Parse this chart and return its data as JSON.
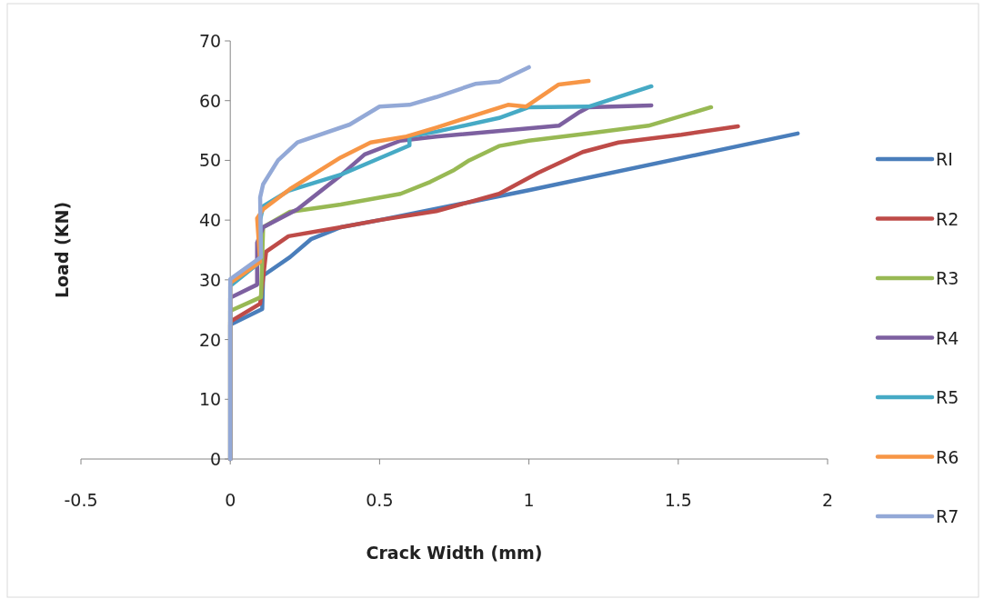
{
  "chart_data": {
    "type": "line",
    "xlabel": "Crack Width (mm)",
    "ylabel": "Load (KN)",
    "xlim": [
      -0.5,
      2
    ],
    "xticks": [
      -0.5,
      0,
      0.5,
      1,
      1.5,
      2
    ],
    "ylim": [
      0,
      70
    ],
    "yticks": [
      0,
      10,
      20,
      30,
      40,
      50,
      60,
      70
    ],
    "grid": false,
    "legend": "right",
    "marker": "none",
    "line_style": "solid",
    "series": [
      {
        "name": "RI",
        "color": "#4a7ebb",
        "x": [
          0,
          0,
          0.107,
          0.11,
          0.2,
          0.27,
          0.37,
          0.5,
          0.8,
          1,
          1.9
        ],
        "values": [
          0,
          22.5,
          25.1,
          30.7,
          33.8,
          36.8,
          38.8,
          40,
          43,
          45,
          54.5
        ]
      },
      {
        "name": "R2",
        "color": "#be4b48",
        "x": [
          0,
          0,
          0.1,
          0.12,
          0.195,
          0.37,
          0.5,
          0.69,
          0.9,
          1.03,
          1.18,
          1.3,
          1.51,
          1.7
        ],
        "values": [
          0,
          23,
          26,
          34.7,
          37.3,
          38.8,
          40,
          41.5,
          44.4,
          47.9,
          51.4,
          53,
          54.3,
          55.7
        ]
      },
      {
        "name": "R3",
        "color": "#98b954",
        "x": [
          0,
          0,
          0.103,
          0.11,
          0.2,
          0.37,
          0.57,
          0.67,
          0.75,
          0.8,
          0.9,
          1,
          1.2,
          1.4,
          1.61
        ],
        "values": [
          0,
          24.8,
          27.1,
          38.8,
          41.4,
          42.6,
          44.4,
          46.4,
          48.4,
          50,
          52.4,
          53.3,
          54.5,
          55.8,
          58.9
        ]
      },
      {
        "name": "R4",
        "color": "#7d60a0",
        "x": [
          0,
          0,
          0.09,
          0.09,
          0.11,
          0.225,
          0.37,
          0.45,
          0.57,
          0.69,
          1.1,
          1.17,
          1.2,
          1.41
        ],
        "values": [
          0,
          27,
          29.2,
          36.2,
          38.8,
          41.8,
          47.5,
          51,
          53.3,
          54,
          55.8,
          58.1,
          58.9,
          59.2
        ]
      },
      {
        "name": "R5",
        "color": "#46aac5",
        "x": [
          0,
          0,
          0.1,
          0.1,
          0.11,
          0.195,
          0.37,
          0.6,
          0.6,
          0.69,
          0.9,
          1,
          1.2,
          1.41
        ],
        "values": [
          0,
          29,
          33,
          40,
          42.3,
          44.9,
          47.6,
          52.5,
          54,
          54.8,
          57.1,
          58.9,
          59,
          62.4
        ]
      },
      {
        "name": "R6",
        "color": "#f79646",
        "x": [
          0,
          0,
          0.1,
          0.09,
          0.11,
          0.2,
          0.37,
          0.47,
          0.59,
          0.69,
          0.93,
          0.99,
          1.1,
          1.2
        ],
        "values": [
          0,
          29.5,
          33,
          40.3,
          41.8,
          45.2,
          50.5,
          53,
          54,
          55.5,
          59.3,
          59,
          62.7,
          63.3
        ]
      },
      {
        "name": "R7",
        "color": "#93a9d7",
        "x": [
          0,
          0,
          0.103,
          0.1,
          0.11,
          0.16,
          0.225,
          0.4,
          0.5,
          0.6,
          0.69,
          0.82,
          0.9,
          1
        ],
        "values": [
          0,
          30.1,
          33.8,
          43.8,
          46,
          50,
          53,
          56,
          59,
          59.3,
          60.6,
          62.8,
          63.2,
          65.6
        ]
      }
    ]
  }
}
